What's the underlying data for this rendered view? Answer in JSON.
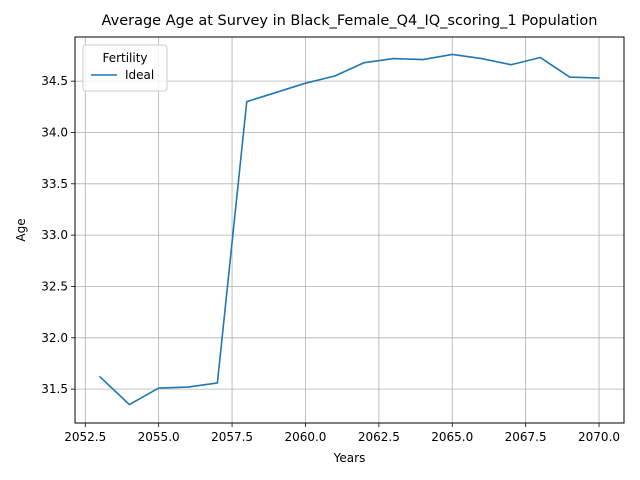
{
  "chart_data": {
    "type": "line",
    "title": "Average Age at Survey in Black_Female_Q4_IQ_scoring_1 Population",
    "xlabel": "Years",
    "ylabel": "Age",
    "xlim": [
      2052.15,
      2070.85
    ],
    "ylim": [
      31.17,
      34.93
    ],
    "xticks": [
      2052.5,
      2055.0,
      2057.5,
      2060.0,
      2062.5,
      2065.0,
      2067.5,
      2070.0
    ],
    "xtick_labels": [
      "2052.5",
      "2055.0",
      "2057.5",
      "2060.0",
      "2062.5",
      "2065.0",
      "2067.5",
      "2070.0"
    ],
    "yticks": [
      31.5,
      32.0,
      32.5,
      33.0,
      33.5,
      34.0,
      34.5
    ],
    "ytick_labels": [
      "31.5",
      "32.0",
      "32.5",
      "33.0",
      "33.5",
      "34.0",
      "34.5"
    ],
    "grid": true,
    "legend": {
      "title": "Fertility",
      "placement": "upper-left"
    },
    "series": [
      {
        "name": "Ideal",
        "color": "#1f77b4",
        "x": [
          2053,
          2054,
          2055,
          2056,
          2057,
          2058,
          2059,
          2060,
          2061,
          2062,
          2063,
          2064,
          2065,
          2066,
          2067,
          2068,
          2069,
          2070
        ],
        "y": [
          31.62,
          31.35,
          31.51,
          31.52,
          31.56,
          34.3,
          34.39,
          34.48,
          34.55,
          34.68,
          34.72,
          34.71,
          34.76,
          34.72,
          34.66,
          34.73,
          34.54,
          34.53
        ]
      }
    ]
  }
}
